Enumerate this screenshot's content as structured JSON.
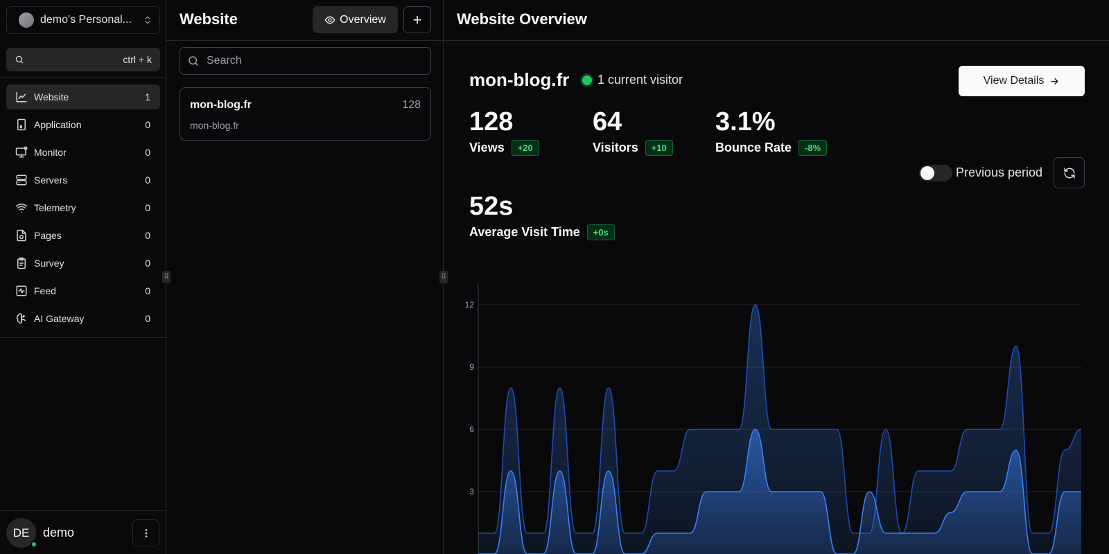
{
  "workspace": {
    "name": "demo's Personal..."
  },
  "sidebar_search": {
    "shortcut": "ctrl + k"
  },
  "sidebar": {
    "items": [
      {
        "label": "Website",
        "count": "1",
        "icon": "line-chart-icon"
      },
      {
        "label": "Application",
        "count": "0",
        "icon": "tablet-icon"
      },
      {
        "label": "Monitor",
        "count": "0",
        "icon": "monitor-icon"
      },
      {
        "label": "Servers",
        "count": "0",
        "icon": "server-icon"
      },
      {
        "label": "Telemetry",
        "count": "0",
        "icon": "wifi-icon"
      },
      {
        "label": "Pages",
        "count": "0",
        "icon": "page-icon"
      },
      {
        "label": "Survey",
        "count": "0",
        "icon": "clipboard-icon"
      },
      {
        "label": "Feed",
        "count": "0",
        "icon": "activity-icon"
      },
      {
        "label": "AI Gateway",
        "count": "0",
        "icon": "brain-icon"
      }
    ]
  },
  "user": {
    "initials": "DE",
    "name": "demo",
    "status_color": "#22c55e"
  },
  "middle": {
    "title": "Website",
    "overview_label": "Overview",
    "add_label": "+",
    "search_placeholder": "Search",
    "sites": [
      {
        "name": "mon-blog.fr",
        "count": "128",
        "domain": "mon-blog.fr"
      }
    ]
  },
  "overview": {
    "title": "Website Overview",
    "site_name": "mon-blog.fr",
    "current_visitors": "1 current visitor",
    "view_details_label": "View Details",
    "stats": [
      {
        "value": "128",
        "label": "Views",
        "change": "+20"
      },
      {
        "value": "64",
        "label": "Visitors",
        "change": "+10"
      },
      {
        "value": "3.1%",
        "label": "Bounce Rate",
        "change": "-8%"
      },
      {
        "value": "52s",
        "label": "Average Visit Time",
        "change": "+0s"
      }
    ],
    "previous_period_label": "Previous period",
    "previous_period_enabled": false
  },
  "colors": {
    "accent": "#3b82f6",
    "positive": "#4ade80",
    "background": "#09090b",
    "border": "#27272a"
  },
  "chart_data": {
    "type": "area",
    "yticks": [
      "3",
      "6",
      "9",
      "12"
    ],
    "ylim": [
      0,
      13
    ],
    "grid": true,
    "series": [
      {
        "values": [
          1,
          1,
          8,
          1,
          1,
          8,
          1,
          1,
          8,
          1,
          1,
          4,
          4,
          6,
          6,
          6,
          6,
          12,
          6,
          6,
          6,
          6,
          6,
          1,
          1,
          6,
          1,
          4,
          4,
          4,
          6,
          6,
          6,
          10,
          1,
          1,
          5,
          6
        ]
      },
      {
        "values": [
          0,
          0,
          4,
          0,
          0,
          4,
          0,
          0,
          4,
          0,
          0,
          1,
          1,
          1,
          3,
          3,
          3,
          6,
          3,
          3,
          3,
          3,
          0,
          0,
          3,
          1,
          1,
          1,
          1,
          2,
          3,
          3,
          3,
          5,
          0,
          0,
          3,
          3
        ]
      }
    ]
  }
}
